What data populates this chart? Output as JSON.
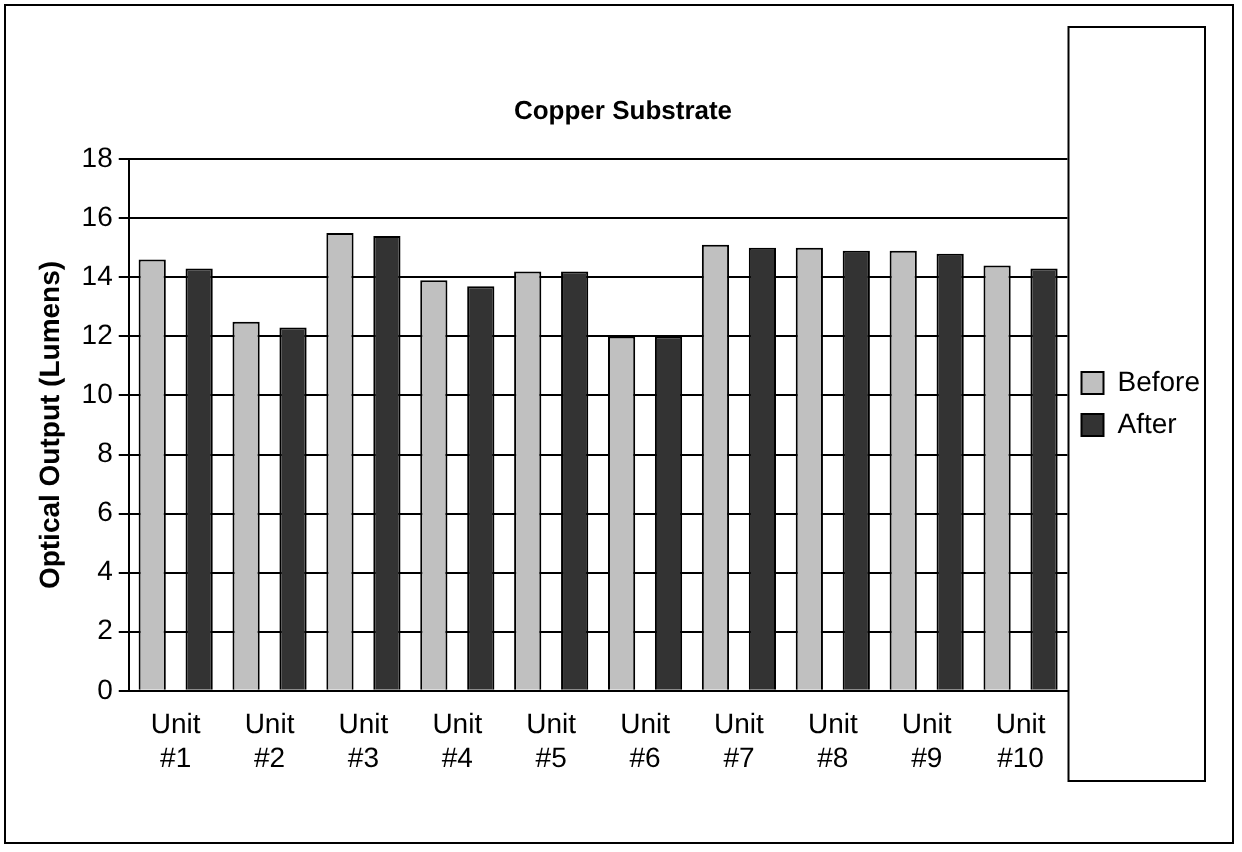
{
  "chart_data": {
    "type": "bar",
    "title": "Copper Substrate",
    "ylabel": "Optical Output (Lumens)",
    "categories": [
      "Unit #1",
      "Unit #2",
      "Unit #3",
      "Unit #4",
      "Unit #5",
      "Unit #6",
      "Unit #7",
      "Unit #8",
      "Unit #9",
      "Unit #10"
    ],
    "series": [
      {
        "name": "Before",
        "color": "#c0c0c0",
        "values": [
          14.6,
          12.5,
          15.5,
          13.9,
          14.2,
          12.0,
          15.1,
          15.0,
          14.9,
          14.4
        ]
      },
      {
        "name": "After",
        "color": "#333333",
        "values": [
          14.3,
          12.3,
          15.4,
          13.7,
          14.2,
          12.0,
          15.0,
          14.9,
          14.8,
          14.3
        ]
      }
    ],
    "ylim": [
      0,
      18
    ],
    "yticks": [
      0,
      2,
      4,
      6,
      8,
      10,
      12,
      14,
      16,
      18
    ],
    "grid": "y",
    "legend": "right"
  }
}
